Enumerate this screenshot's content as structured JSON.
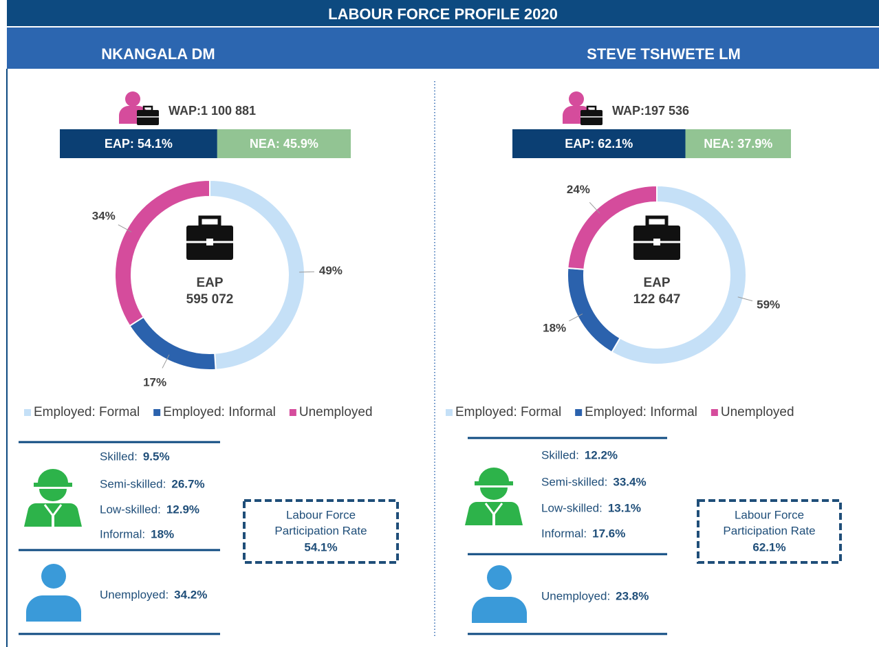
{
  "title": "LABOUR FORCE PROFILE 2020",
  "panels": [
    {
      "name": "NKANGALA DM",
      "wap": "WAP:1 100 881",
      "split": [
        {
          "label": "EAP: 54.1%",
          "value": 54.1,
          "color": "#0b3f73"
        },
        {
          "label": "NEA: 45.9%",
          "value": 45.9,
          "color": "#92c493"
        }
      ],
      "skills": [
        {
          "label": "Skilled:",
          "value": "9.5%"
        },
        {
          "label": "Semi-skilled:",
          "value": "26.7%"
        },
        {
          "label": "Low-skilled:",
          "value": "12.9%"
        },
        {
          "label": "Informal:",
          "value": "18%"
        }
      ],
      "unemployed": {
        "label": "Unemployed:",
        "value": "34.2%"
      },
      "participation": {
        "label": [
          "Labour Force",
          "Participation Rate"
        ],
        "value": "54.1%"
      }
    },
    {
      "name": "STEVE TSHWETE LM",
      "wap": "WAP:197 536",
      "split": [
        {
          "label": "EAP: 62.1%",
          "value": 62.1,
          "color": "#0b3f73"
        },
        {
          "label": "NEA: 37.9%",
          "value": 37.9,
          "color": "#92c493"
        }
      ],
      "skills": [
        {
          "label": "Skilled:",
          "value": "12.2%"
        },
        {
          "label": "Semi-skilled:",
          "value": "33.4%"
        },
        {
          "label": "Low-skilled:",
          "value": "13.1%"
        },
        {
          "label": "Informal:",
          "value": "17.6%"
        }
      ],
      "unemployed": {
        "label": "Unemployed:",
        "value": "23.8%"
      },
      "participation": {
        "label": [
          "Labour Force",
          "Participation Rate"
        ],
        "value": "62.1%"
      }
    }
  ],
  "chart_data": [
    {
      "type": "donut",
      "center_label": "EAP",
      "center_value": "595 072",
      "categories": [
        "Employed: Formal",
        "Employed: Informal",
        "Unemployed"
      ],
      "values": [
        49,
        17,
        34
      ],
      "value_labels": [
        "49%",
        "17%",
        "34%"
      ],
      "colors": [
        "#c5e0f7",
        "#2b62ad",
        "#d54c9c"
      ]
    },
    {
      "type": "donut",
      "center_label": "EAP",
      "center_value": "122 647",
      "categories": [
        "Employed: Formal",
        "Employed: Informal",
        "Unemployed"
      ],
      "values": [
        59,
        18,
        24
      ],
      "value_labels": [
        "59%",
        "18%",
        "24%"
      ],
      "colors": [
        "#c5e0f7",
        "#2b62ad",
        "#d54c9c"
      ]
    }
  ]
}
